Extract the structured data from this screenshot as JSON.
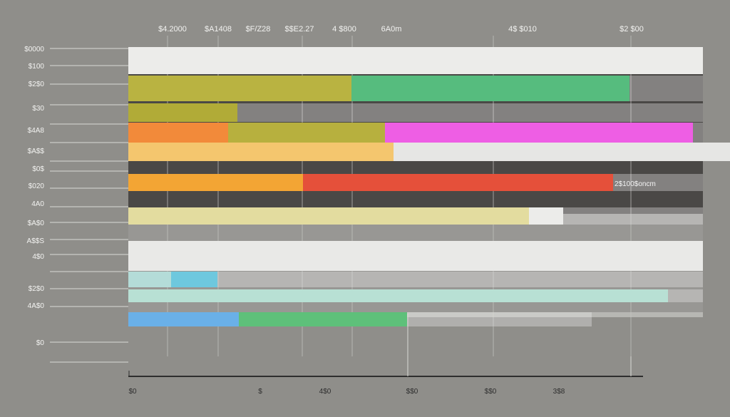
{
  "chart_data": {
    "type": "bar",
    "orientation": "horizontal",
    "stacked": true,
    "top_labels": [
      "$4.2000",
      "$A1408",
      "$F/Z28",
      "$$E2.27",
      "4 $800",
      "6A0m",
      "4$ $010",
      "$2 $00"
    ],
    "y_labels": [
      "$0000",
      "$100",
      "$2$0",
      "$30",
      "$4A8",
      "$A$$",
      "$0$",
      "$020",
      "4A0",
      "$A$0",
      "A$$S",
      "4$0",
      "$2$0",
      "4A$0",
      "$0"
    ],
    "x_labels": [
      "$0",
      "$",
      "4$0",
      "$$0",
      "$$0",
      "3$8"
    ],
    "annotation": "2$100$oncm",
    "grid": true,
    "rows": [
      {
        "segments": [
          {
            "value": 0,
            "color": "#ececea"
          },
          {
            "value": 806,
            "color": "#ececea"
          }
        ],
        "ghost_end": 986
      },
      {
        "segments": [
          {
            "value": 313,
            "color": "#b9b341"
          },
          {
            "value": 390,
            "color": "#56bc7e"
          }
        ],
        "ghost_end": 986
      },
      {
        "segments": [
          {
            "value": 153,
            "color": "#b1ab37"
          }
        ],
        "ghost_end": 986
      },
      {
        "segments": [
          {
            "value": 140,
            "color": "#f28a3a"
          },
          {
            "value": 220,
            "color": "#b7b03e"
          },
          {
            "value": 432,
            "color": "#ee5ee4"
          }
        ],
        "ghost_end": 986
      },
      {
        "segments": [
          {
            "value": 372,
            "color": "#f4c66e"
          },
          {
            "value": 472,
            "color": "#e6e6e4"
          }
        ],
        "ghost_end": 1024
      },
      {
        "segments": [
          {
            "value": 245,
            "color": "#f3a534"
          },
          {
            "value": 435,
            "color": "#e5503a"
          }
        ],
        "ghost_end": 986
      },
      {
        "segments": [
          {
            "value": 562,
            "color": "#e3dc9f"
          },
          {
            "value": 48,
            "color": "#ececea"
          }
        ],
        "ghost_end": 986
      },
      {
        "segments": [
          {
            "value": 0,
            "color": "#e0e0de"
          },
          {
            "value": 806,
            "color": "#e9e9e7"
          }
        ],
        "ghost_end": 986
      },
      {
        "segments": [
          {
            "value": 60,
            "color": "#b4dcd8"
          },
          {
            "value": 65,
            "color": "#6ec8de"
          }
        ],
        "ghost_end": 986
      },
      {
        "segments": [
          {
            "value": 757,
            "color": "#b8e0d4"
          }
        ],
        "ghost_end": 986
      },
      {
        "segments": [
          {
            "value": 155,
            "color": "#6ab0e8"
          },
          {
            "value": 236,
            "color": "#5ec07a"
          }
        ],
        "ghost_end": 830
      }
    ]
  }
}
